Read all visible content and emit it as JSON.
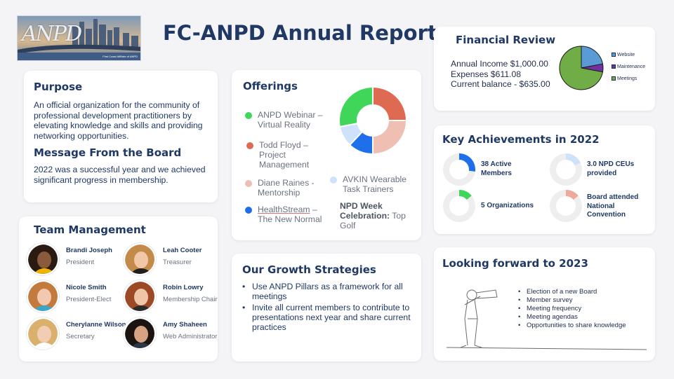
{
  "header": {
    "title": "FC-ANPD Annual Report",
    "logo_text": "ANPD",
    "logo_subtext": "First Coast Affiliate of ANPD"
  },
  "purpose": {
    "heading": "Purpose",
    "text": "An official organization for the community of professional development practitioners by elevating knowledge and skills and providing networking opportunities.",
    "board_heading": "Message From the Board",
    "board_text": "2022 was a successful year and we achieved significant progress in membership."
  },
  "team": {
    "heading": "Team Management",
    "members": [
      {
        "name": "Brandi Joseph",
        "role": "President"
      },
      {
        "name": "Leah Cooter",
        "role": "Treasurer"
      },
      {
        "name": "Nicole Smith",
        "role": "President-Elect"
      },
      {
        "name": "Robin Lowry",
        "role": "Membership Chair"
      },
      {
        "name": "Cherylanne Wilson",
        "role": "Secretary"
      },
      {
        "name": "Amy Shaheen",
        "role": "Web Administrator"
      }
    ]
  },
  "offerings": {
    "heading": "Offerings",
    "items": [
      {
        "text": "ANPD Webinar – Virtual Reality",
        "color": "#3fd659"
      },
      {
        "text": "Todd Floyd – Project Management",
        "color": "#de6a52"
      },
      {
        "text": "Diane Raines - Mentorship",
        "color": "#efbfb3"
      },
      {
        "text_a": "HealthStream",
        "text_b": " – The New Normal",
        "color": "#1f6feb"
      },
      {
        "text": "AVKIN Wearable Task Trainers",
        "color": "#cfe2fb"
      }
    ],
    "npd_week_bold": "NPD Week Celebration:",
    "npd_week_rest": " Top Golf",
    "donut": [
      {
        "value": 25,
        "color": "#de6a52"
      },
      {
        "value": 25,
        "color": "#efbfb3"
      },
      {
        "value": 12,
        "color": "#1f6feb"
      },
      {
        "value": 10,
        "color": "#cfe2fb"
      },
      {
        "value": 28,
        "color": "#3fd659"
      }
    ]
  },
  "growth": {
    "heading": "Our Growth Strategies",
    "items": [
      "Use ANPD Pillars as a framework for all meetings",
      "Invite all current members to contribute to presentations next year and share current practices"
    ]
  },
  "finance": {
    "heading": "Financial Review",
    "lines": [
      "Annual Income $1,000.00",
      "Expenses $611.08",
      "Current balance - $635.00"
    ],
    "pie": [
      {
        "label": "Website",
        "value": 22,
        "color": "#5b9bd5"
      },
      {
        "label": "Maintenance",
        "value": 6,
        "color": "#7030a0"
      },
      {
        "label": "Meetings",
        "value": 72,
        "color": "#70ad47"
      }
    ]
  },
  "achievements": {
    "heading": "Key Achievements in 2022",
    "items": [
      {
        "label": "38 Active Members",
        "fraction": 0.27,
        "color": "#1f6feb"
      },
      {
        "label": "3.0 NPD CEUs provided",
        "fraction": 0.18,
        "color": "#cfe2fb"
      },
      {
        "label": "5 Organizations",
        "fraction": 0.14,
        "color": "#3fd659"
      },
      {
        "label": "Board attended National Convention",
        "fraction": 0.14,
        "color": "#efa99a"
      }
    ]
  },
  "forward": {
    "heading": "Looking forward to 2023",
    "items": [
      "Election of a new Board",
      "Member survey",
      "Meeting frequency",
      "Meeting agendas",
      "Opportunities to share knowledge"
    ]
  }
}
